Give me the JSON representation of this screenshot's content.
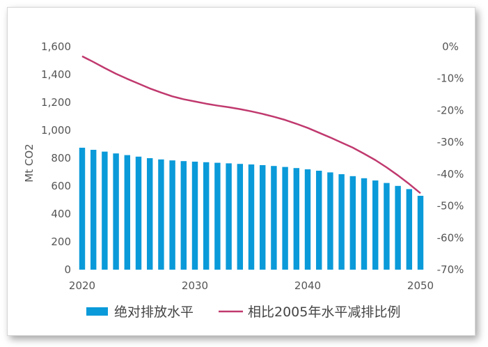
{
  "chart_data": {
    "type": "bar",
    "title": "",
    "xlabel": "",
    "ylabel": "Mt CO2",
    "y2label": "",
    "x": [
      2020,
      2021,
      2022,
      2023,
      2024,
      2025,
      2026,
      2027,
      2028,
      2029,
      2030,
      2031,
      2032,
      2033,
      2034,
      2035,
      2036,
      2037,
      2038,
      2039,
      2040,
      2041,
      2042,
      2043,
      2044,
      2045,
      2046,
      2047,
      2048,
      2049,
      2050
    ],
    "x_ticks": [
      "2020",
      "2030",
      "2040",
      "2050"
    ],
    "ylim": [
      0,
      1600
    ],
    "y_ticks": [
      "0",
      "200",
      "400",
      "600",
      "800",
      "1,000",
      "1,200",
      "1,400",
      "1,600"
    ],
    "y2lim": [
      -70,
      0
    ],
    "y2_ticks": [
      "-70%",
      "-60%",
      "-50%",
      "-40%",
      "-30%",
      "-20%",
      "-10%",
      "0%"
    ],
    "grid": false,
    "legend_position": "bottom",
    "series": [
      {
        "name": "绝对排放水平",
        "type": "bar",
        "axis": "left",
        "color": "#0a9ad9",
        "values": [
          875,
          860,
          847,
          834,
          822,
          811,
          800,
          791,
          784,
          779,
          775,
          771,
          767,
          763,
          759,
          755,
          750,
          744,
          737,
          729,
          720,
          710,
          698,
          685,
          671,
          656,
          640,
          622,
          601,
          578,
          530
        ]
      },
      {
        "name": "相比2005年水平减排比例",
        "type": "line",
        "axis": "right",
        "color": "#c0396e",
        "values": [
          -3.0,
          -4.8,
          -6.7,
          -8.5,
          -10.1,
          -11.6,
          -13.1,
          -14.4,
          -15.6,
          -16.5,
          -17.2,
          -17.9,
          -18.5,
          -19.0,
          -19.6,
          -20.3,
          -21.1,
          -22.0,
          -23.0,
          -24.2,
          -25.5,
          -27.0,
          -28.5,
          -30.1,
          -31.7,
          -33.6,
          -35.6,
          -37.9,
          -40.4,
          -43.1,
          -46.0
        ]
      }
    ]
  }
}
